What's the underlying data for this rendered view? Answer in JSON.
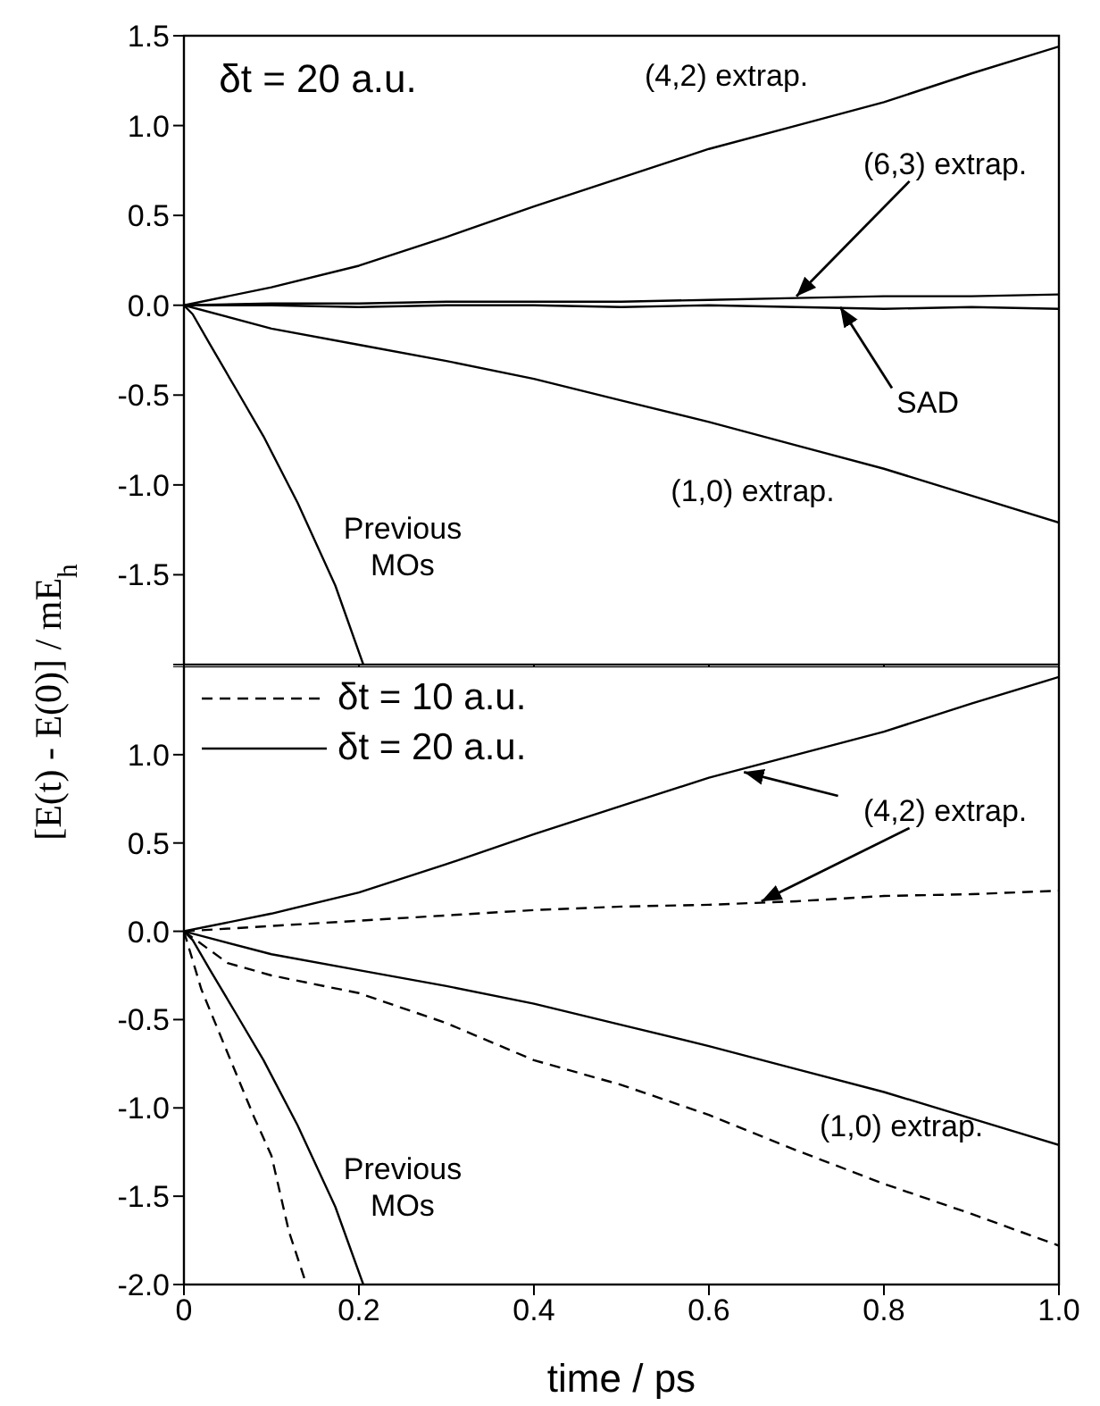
{
  "chart_data": [
    {
      "type": "line",
      "ylabel": "[E(t) - E(0)] / mE$_{h}$",
      "xlim": [
        0,
        1
      ],
      "ylim": [
        -2,
        1.5
      ],
      "xticks": [
        0,
        0.2,
        0.4,
        0.6,
        0.8,
        1
      ],
      "yticks": [
        {
          "value": -2,
          "label": null
        },
        -1.5,
        {
          "value": -1,
          "label": "-1.0"
        },
        -0.5,
        {
          "value": 0,
          "label": "0.0"
        },
        0.5,
        {
          "value": 1,
          "label": "1.0"
        },
        1.5
      ],
      "tick_labels": "y",
      "grid": false,
      "legend": false,
      "annotations": [
        "δt = 20 a.u.",
        "(4,2) extrap.",
        {
          "text": "(6,3) extrap.",
          "x": 0.7,
          "y": 0.05
        },
        {
          "text": "SAD",
          "x": 0.75,
          "y": -0.01
        },
        "(1,0) extrap.",
        "Previous MOs"
      ],
      "series": [
        {
          "color": "#000000",
          "line_style": "solid",
          "x": [
            0,
            0.1,
            0.2,
            0.3,
            0.4,
            0.5,
            0.6,
            0.7,
            0.8,
            0.9,
            1.0
          ],
          "values": [
            0,
            0.1,
            0.22,
            0.38,
            0.55,
            0.71,
            0.87,
            1.0,
            1.13,
            1.29,
            1.44
          ]
        },
        {
          "color": "#000000",
          "line_style": "solid",
          "x": [
            0,
            0.1,
            0.2,
            0.3,
            0.4,
            0.5,
            0.6,
            0.7,
            0.8,
            0.9,
            1.0
          ],
          "values": [
            0,
            0.01,
            0.01,
            0.02,
            0.02,
            0.02,
            0.03,
            0.04,
            0.05,
            0.05,
            0.06
          ]
        },
        {
          "color": "#000000",
          "line_style": "solid",
          "x": [
            0,
            0.1,
            0.2,
            0.3,
            0.4,
            0.5,
            0.6,
            0.7,
            0.8,
            0.9,
            1.0
          ],
          "values": [
            0,
            0,
            -0.01,
            0,
            0,
            -0.01,
            0,
            -0.01,
            -0.02,
            -0.01,
            -0.02
          ]
        },
        {
          "color": "#000000",
          "line_style": "solid",
          "x": [
            0,
            0.1,
            0.2,
            0.3,
            0.4,
            0.5,
            0.6,
            0.7,
            0.8,
            0.9,
            1.0
          ],
          "values": [
            0,
            -0.13,
            -0.22,
            -0.31,
            -0.41,
            -0.53,
            -0.65,
            -0.78,
            -0.91,
            -1.06,
            -1.21
          ]
        },
        {
          "color": "#000000",
          "line_style": "solid",
          "x": [
            0,
            0.01,
            0.03,
            0.06,
            0.091,
            0.13,
            0.173,
            0.205
          ],
          "values": [
            0,
            -0.05,
            -0.22,
            -0.47,
            -0.73,
            -1.1,
            -1.56,
            -2.0
          ]
        }
      ]
    },
    {
      "type": "line",
      "xlabel": "time / ps",
      "xlim": [
        0,
        1
      ],
      "ylim": [
        -2,
        1.5
      ],
      "xticks": [
        0,
        0.2,
        0.4,
        0.6,
        0.8,
        {
          "value": 1,
          "label": "1.0"
        }
      ],
      "yticks": [
        {
          "value": -2,
          "label": "-2.0"
        },
        -1.5,
        {
          "value": -1,
          "label": "-1.0"
        },
        -0.5,
        {
          "value": 0,
          "label": "0.0"
        },
        0.5,
        {
          "value": 1,
          "label": "1.0"
        },
        {
          "value": 1.5,
          "label": null
        }
      ],
      "grid": false,
      "legend": "top left",
      "annotations": [
        {
          "text": "(4,2) extrap.",
          "x": 0.66,
          "y": 0.17
        },
        "(1,0) extrap.",
        "Previous MOs"
      ],
      "series": [
        {
          "name": "δt = 10 a.u.",
          "color": "#000000",
          "line_style": "dashed",
          "x": [
            0,
            0.1,
            0.2,
            0.3,
            0.4,
            0.5,
            0.6,
            0.7,
            0.8,
            0.9,
            1.0
          ],
          "values": [
            0,
            0.03,
            0.06,
            0.09,
            0.12,
            0.14,
            0.15,
            0.17,
            0.2,
            0.21,
            0.23
          ]
        },
        {
          "name": "δt = 20 a.u.",
          "color": "#000000",
          "line_style": "solid",
          "x": [
            0,
            0.1,
            0.2,
            0.3,
            0.4,
            0.5,
            0.6,
            0.7,
            0.8,
            0.9,
            1.0
          ],
          "values": [
            0,
            0.1,
            0.22,
            0.38,
            0.55,
            0.71,
            0.87,
            1.0,
            1.13,
            1.29,
            1.44
          ]
        },
        {
          "color": "#000000",
          "line_style": "dashed",
          "x": [
            0,
            0.05,
            0.1,
            0.2,
            0.3,
            0.4,
            0.5,
            0.6,
            0.7,
            0.8,
            0.9,
            1.0
          ],
          "values": [
            0,
            -0.18,
            -0.25,
            -0.35,
            -0.52,
            -0.73,
            -0.87,
            -1.04,
            -1.24,
            -1.43,
            -1.6,
            -1.78
          ]
        },
        {
          "color": "#000000",
          "line_style": "solid",
          "x": [
            0,
            0.1,
            0.2,
            0.3,
            0.4,
            0.5,
            0.6,
            0.7,
            0.8,
            0.9,
            1.0
          ],
          "values": [
            0,
            -0.13,
            -0.22,
            -0.31,
            -0.41,
            -0.53,
            -0.65,
            -0.78,
            -0.91,
            -1.06,
            -1.21
          ]
        },
        {
          "color": "#000000",
          "line_style": "dashed",
          "x": [
            0,
            0.02,
            0.05,
            0.08,
            0.1,
            0.12,
            0.14
          ],
          "values": [
            0,
            -0.33,
            -0.69,
            -1.05,
            -1.27,
            -1.7,
            -2.0
          ]
        },
        {
          "color": "#000000",
          "line_style": "solid",
          "x": [
            0,
            0.01,
            0.03,
            0.06,
            0.091,
            0.13,
            0.173,
            0.205
          ],
          "values": [
            0,
            -0.05,
            -0.22,
            -0.47,
            -0.73,
            -1.1,
            -1.56,
            -2.0
          ]
        }
      ]
    }
  ]
}
